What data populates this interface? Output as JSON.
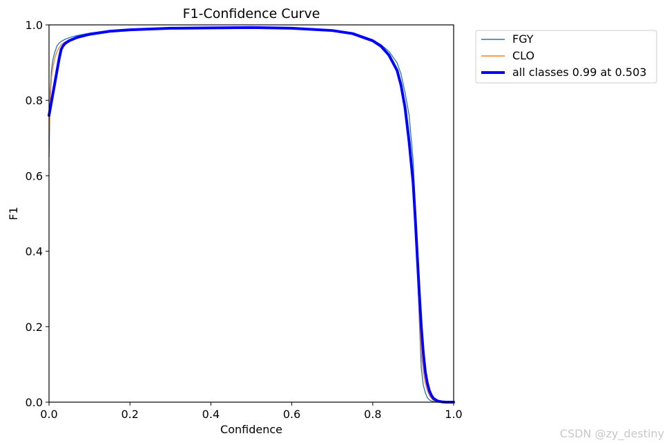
{
  "chart_data": {
    "type": "line",
    "title": "F1-Confidence Curve",
    "xlabel": "Confidence",
    "ylabel": "F1",
    "xlim": [
      0.0,
      1.0
    ],
    "ylim": [
      0.0,
      1.0
    ],
    "xticks": [
      "0.0",
      "0.2",
      "0.4",
      "0.6",
      "0.8",
      "1.0"
    ],
    "yticks": [
      "0.0",
      "0.2",
      "0.4",
      "0.6",
      "0.8",
      "1.0"
    ],
    "grid": false,
    "legend_position": "outside-top-right",
    "series": [
      {
        "name": "FGY",
        "color": "#1f77b4",
        "line_style": "thin",
        "x": [
          0.0,
          0.003,
          0.006,
          0.01,
          0.015,
          0.02,
          0.025,
          0.03,
          0.04,
          0.05,
          0.07,
          0.1,
          0.15,
          0.2,
          0.3,
          0.4,
          0.5,
          0.6,
          0.7,
          0.75,
          0.8,
          0.82,
          0.84,
          0.86,
          0.87,
          0.88,
          0.89,
          0.9,
          0.905,
          0.91,
          0.915,
          0.92,
          0.925,
          0.93,
          0.935,
          0.94,
          0.945,
          0.95,
          0.96,
          0.97,
          0.98,
          1.0
        ],
        "y": [
          0.65,
          0.82,
          0.88,
          0.91,
          0.93,
          0.945,
          0.952,
          0.956,
          0.962,
          0.966,
          0.972,
          0.978,
          0.985,
          0.988,
          0.991,
          0.993,
          0.993,
          0.991,
          0.985,
          0.977,
          0.96,
          0.948,
          0.93,
          0.9,
          0.87,
          0.82,
          0.76,
          0.64,
          0.52,
          0.38,
          0.22,
          0.09,
          0.045,
          0.025,
          0.012,
          0.006,
          0.003,
          0.002,
          0.0,
          0.0,
          0.0,
          0.0
        ]
      },
      {
        "name": "CLO",
        "color": "#ff7f0e",
        "line_style": "thin",
        "x": [
          0.0,
          0.003,
          0.006,
          0.01,
          0.015,
          0.02,
          0.025,
          0.03,
          0.04,
          0.05,
          0.07,
          0.1,
          0.15,
          0.2,
          0.3,
          0.4,
          0.5,
          0.6,
          0.7,
          0.75,
          0.8,
          0.82,
          0.84,
          0.86,
          0.87,
          0.88,
          0.89,
          0.9,
          0.905,
          0.91,
          0.915,
          0.92,
          0.925,
          0.93,
          0.935,
          0.94,
          0.945,
          0.95,
          0.96,
          0.97,
          0.98,
          1.0
        ],
        "y": [
          0.7,
          0.8,
          0.86,
          0.89,
          0.915,
          0.93,
          0.94,
          0.948,
          0.955,
          0.961,
          0.969,
          0.976,
          0.983,
          0.987,
          0.99,
          0.992,
          0.992,
          0.99,
          0.984,
          0.975,
          0.955,
          0.94,
          0.918,
          0.88,
          0.84,
          0.78,
          0.7,
          0.58,
          0.48,
          0.36,
          0.23,
          0.13,
          0.08,
          0.05,
          0.03,
          0.018,
          0.01,
          0.005,
          0.0,
          0.0,
          0.0,
          0.0
        ]
      },
      {
        "name": "all classes 0.99 at 0.503",
        "color": "#0000ff",
        "line_style": "thick",
        "x": [
          0.0,
          0.005,
          0.01,
          0.015,
          0.02,
          0.025,
          0.03,
          0.035,
          0.04,
          0.05,
          0.07,
          0.1,
          0.15,
          0.2,
          0.3,
          0.4,
          0.5,
          0.6,
          0.7,
          0.75,
          0.8,
          0.82,
          0.84,
          0.86,
          0.87,
          0.88,
          0.89,
          0.9,
          0.905,
          0.91,
          0.915,
          0.92,
          0.925,
          0.93,
          0.935,
          0.94,
          0.945,
          0.95,
          0.96,
          0.97,
          0.98,
          1.0
        ],
        "y": [
          0.76,
          0.79,
          0.82,
          0.85,
          0.88,
          0.91,
          0.935,
          0.945,
          0.951,
          0.958,
          0.967,
          0.975,
          0.983,
          0.987,
          0.991,
          0.992,
          0.993,
          0.991,
          0.985,
          0.977,
          0.958,
          0.944,
          0.92,
          0.88,
          0.84,
          0.78,
          0.69,
          0.58,
          0.49,
          0.39,
          0.29,
          0.2,
          0.13,
          0.08,
          0.05,
          0.03,
          0.018,
          0.01,
          0.003,
          0.001,
          0.0,
          0.0
        ]
      }
    ]
  },
  "watermark": "CSDN @zy_destiny"
}
